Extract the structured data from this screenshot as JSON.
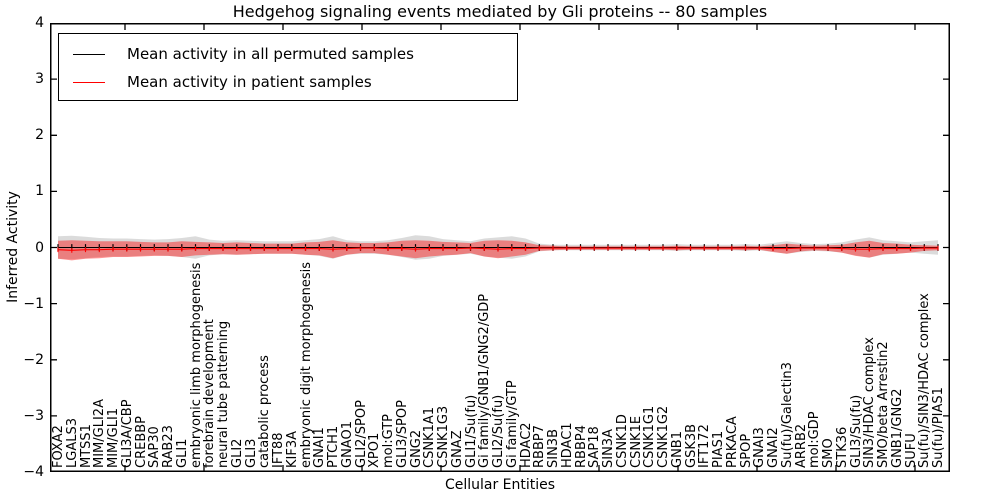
{
  "title": "Hedgehog signaling events mediated by Gli proteins -- 80 samples",
  "axes": {
    "ylabel": "Inferred Activity",
    "xlabel": "Cellular Entities",
    "ylim": [
      -4,
      4
    ],
    "yticks": [
      "4",
      "3",
      "2",
      "1",
      "0",
      "−1",
      "−2",
      "−3",
      "−4"
    ],
    "ytick_values": [
      4,
      3,
      2,
      1,
      0,
      -1,
      -2,
      -3,
      -4
    ],
    "grid": false
  },
  "legend": {
    "position": "upper-left",
    "items": [
      {
        "label": "Mean activity in all permuted samples",
        "color": "#000000"
      },
      {
        "label": "Mean activity in patient samples",
        "color": "#ff0000"
      }
    ]
  },
  "colors": {
    "permuted_line": "#000000",
    "patient_line": "#ff0000",
    "permuted_band": "#999999",
    "patient_band": "#ff0000",
    "permuted_band_opacity": 0.35,
    "patient_band_opacity": 0.42
  },
  "chart_data": {
    "type": "line",
    "title": "Hedgehog signaling events mediated by Gli proteins -- 80 samples",
    "xlabel": "Cellular Entities",
    "ylabel": "Inferred Activity",
    "ylim": [
      -4,
      4
    ],
    "legend_position": "upper-left",
    "categories": [
      "FOXA2",
      "LGALS3",
      "MTSS1",
      "MIM/GLI2A",
      "MIM/GLI1",
      "GLI3A/CBP",
      "CREBBP",
      "SAP30",
      "RAB23",
      "GLI1",
      "embryonic limb morphogenesis",
      "forebrain development",
      "neural tube patterning",
      "GLI2",
      "GLI3",
      "catabolic process",
      "IFT88",
      "KIF3A",
      "embryonic digit morphogenesis",
      "GNAI1",
      "PTCH1",
      "GNAO1",
      "GLI2/SPOP",
      "XPO1",
      "mol:GTP",
      "GLI3/SPOP",
      "GNG2",
      "CSNK1A1",
      "CSNK1G3",
      "GNAZ",
      "GLI1/Su(fu)",
      "Gi family/GNB1/GNG2/GDP",
      "GLI2/Su(fu)",
      "Gi family/GTP",
      "HDAC2",
      "RBBP7",
      "SIN3B",
      "HDAC1",
      "RBBP4",
      "SAP18",
      "SIN3A",
      "CSNK1D",
      "CSNK1E",
      "CSNK1G1",
      "CSNK1G2",
      "GNB1",
      "GSK3B",
      "IFT172",
      "PIAS1",
      "PRKACA",
      "SPOP",
      "GNAI3",
      "GNAI2",
      "Su(fu)/Galectin3",
      "ARRB2",
      "mol:GDP",
      "SMO",
      "STK36",
      "GLI3/Su(fu)",
      "SIN3/HDAC complex",
      "SMO/beta Arrestin2",
      "GNB1/GNG2",
      "SUFU",
      "Su(fu)/SIN3/HDAC complex",
      "Su(fu)/PIAS1"
    ],
    "series": [
      {
        "name": "Mean activity in all permuted samples",
        "color": "#000000",
        "values": [
          0,
          0,
          0,
          0,
          0,
          0,
          0,
          0,
          0,
          0,
          0,
          0,
          0,
          0,
          0,
          0,
          0,
          0,
          0,
          0,
          0,
          0,
          0,
          0,
          0,
          0,
          0,
          0,
          0,
          0,
          0,
          0,
          0,
          0,
          0,
          0,
          0,
          0,
          0,
          0,
          0,
          0,
          0,
          0,
          0,
          0,
          0,
          0,
          0,
          0,
          0,
          0,
          0,
          0,
          0,
          0,
          0,
          0,
          0,
          0,
          0,
          0,
          0,
          0,
          0
        ],
        "band_halfwidth": [
          0.2,
          0.21,
          0.19,
          0.17,
          0.16,
          0.16,
          0.15,
          0.14,
          0.15,
          0.17,
          0.2,
          0.14,
          0.12,
          0.13,
          0.12,
          0.11,
          0.11,
          0.11,
          0.13,
          0.15,
          0.2,
          0.13,
          0.11,
          0.11,
          0.13,
          0.17,
          0.22,
          0.2,
          0.15,
          0.13,
          0.11,
          0.16,
          0.18,
          0.2,
          0.16,
          0.07,
          0.05,
          0.05,
          0.05,
          0.05,
          0.05,
          0.05,
          0.05,
          0.05,
          0.05,
          0.06,
          0.05,
          0.05,
          0.05,
          0.05,
          0.06,
          0.05,
          0.08,
          0.11,
          0.08,
          0.06,
          0.07,
          0.09,
          0.14,
          0.18,
          0.13,
          0.11,
          0.09,
          0.11,
          0.13
        ]
      },
      {
        "name": "Mean activity in patient samples",
        "color": "#ff0000",
        "values": [
          -0.04,
          -0.05,
          -0.04,
          -0.04,
          -0.03,
          -0.03,
          -0.03,
          -0.03,
          -0.03,
          -0.03,
          -0.02,
          -0.02,
          -0.02,
          -0.02,
          -0.02,
          -0.02,
          -0.02,
          -0.02,
          -0.02,
          -0.02,
          -0.03,
          -0.02,
          -0.01,
          -0.01,
          -0.02,
          -0.02,
          -0.03,
          -0.02,
          -0.02,
          -0.02,
          -0.01,
          -0.02,
          -0.03,
          -0.02,
          -0.02,
          -0.01,
          -0.01,
          -0.01,
          -0.01,
          -0.01,
          -0.01,
          -0.01,
          -0.01,
          -0.01,
          -0.01,
          -0.01,
          -0.01,
          -0.01,
          -0.01,
          -0.01,
          -0.01,
          -0.01,
          -0.02,
          -0.02,
          -0.01,
          -0.01,
          -0.01,
          -0.02,
          -0.03,
          -0.03,
          -0.02,
          -0.02,
          -0.02,
          -0.01,
          -0.01
        ],
        "band_halfwidth": [
          0.16,
          0.18,
          0.16,
          0.15,
          0.14,
          0.14,
          0.13,
          0.12,
          0.12,
          0.14,
          0.12,
          0.11,
          0.1,
          0.11,
          0.1,
          0.09,
          0.09,
          0.09,
          0.11,
          0.12,
          0.16,
          0.11,
          0.09,
          0.09,
          0.11,
          0.14,
          0.16,
          0.14,
          0.12,
          0.11,
          0.09,
          0.14,
          0.16,
          0.14,
          0.11,
          0.05,
          0.04,
          0.03,
          0.03,
          0.03,
          0.03,
          0.03,
          0.03,
          0.03,
          0.03,
          0.04,
          0.03,
          0.03,
          0.03,
          0.03,
          0.04,
          0.03,
          0.06,
          0.09,
          0.06,
          0.04,
          0.05,
          0.07,
          0.12,
          0.15,
          0.1,
          0.09,
          0.07,
          0.05,
          0.04
        ]
      }
    ]
  }
}
